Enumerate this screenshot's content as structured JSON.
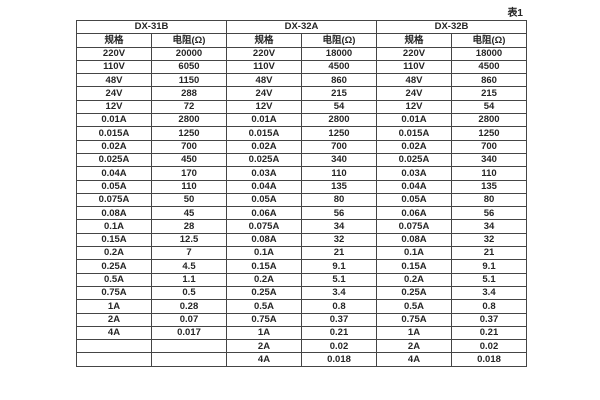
{
  "page": {
    "table_caption": "表1"
  },
  "table": {
    "groups": [
      {
        "name": "DX-31B"
      },
      {
        "name": "DX-32A"
      },
      {
        "name": "DX-32B"
      }
    ],
    "sub_headers": {
      "spec": "规格",
      "resistance": "电阻(Ω)"
    },
    "rows": [
      [
        "220V",
        "20000",
        "220V",
        "18000",
        "220V",
        "18000"
      ],
      [
        "110V",
        "6050",
        "110V",
        "4500",
        "110V",
        "4500"
      ],
      [
        "48V",
        "1150",
        "48V",
        "860",
        "48V",
        "860"
      ],
      [
        "24V",
        "288",
        "24V",
        "215",
        "24V",
        "215"
      ],
      [
        "12V",
        "72",
        "12V",
        "54",
        "12V",
        "54"
      ],
      [
        "0.01A",
        "2800",
        "0.01A",
        "2800",
        "0.01A",
        "2800"
      ],
      [
        "0.015A",
        "1250",
        "0.015A",
        "1250",
        "0.015A",
        "1250"
      ],
      [
        "0.02A",
        "700",
        "0.02A",
        "700",
        "0.02A",
        "700"
      ],
      [
        "0.025A",
        "450",
        "0.025A",
        "340",
        "0.025A",
        "340"
      ],
      [
        "0.04A",
        "170",
        "0.03A",
        "110",
        "0.03A",
        "110"
      ],
      [
        "0.05A",
        "110",
        "0.04A",
        "135",
        "0.04A",
        "135"
      ],
      [
        "0.075A",
        "50",
        "0.05A",
        "80",
        "0.05A",
        "80"
      ],
      [
        "0.08A",
        "45",
        "0.06A",
        "56",
        "0.06A",
        "56"
      ],
      [
        "0.1A",
        "28",
        "0.075A",
        "34",
        "0.075A",
        "34"
      ],
      [
        "0.15A",
        "12.5",
        "0.08A",
        "32",
        "0.08A",
        "32"
      ],
      [
        "0.2A",
        "7",
        "0.1A",
        "21",
        "0.1A",
        "21"
      ],
      [
        "0.25A",
        "4.5",
        "0.15A",
        "9.1",
        "0.15A",
        "9.1"
      ],
      [
        "0.5A",
        "1.1",
        "0.2A",
        "5.1",
        "0.2A",
        "5.1"
      ],
      [
        "0.75A",
        "0.5",
        "0.25A",
        "3.4",
        "0.25A",
        "3.4"
      ],
      [
        "1A",
        "0.28",
        "0.5A",
        "0.8",
        "0.5A",
        "0.8"
      ],
      [
        "2A",
        "0.07",
        "0.75A",
        "0.37",
        "0.75A",
        "0.37"
      ],
      [
        "4A",
        "0.017",
        "1A",
        "0.21",
        "1A",
        "0.21"
      ],
      [
        "",
        "",
        "2A",
        "0.02",
        "2A",
        "0.02"
      ],
      [
        "",
        "",
        "4A",
        "0.018",
        "4A",
        "0.018"
      ]
    ]
  },
  "colors": {
    "background": "#ffffff",
    "border": "#454545",
    "text": "#262626"
  }
}
